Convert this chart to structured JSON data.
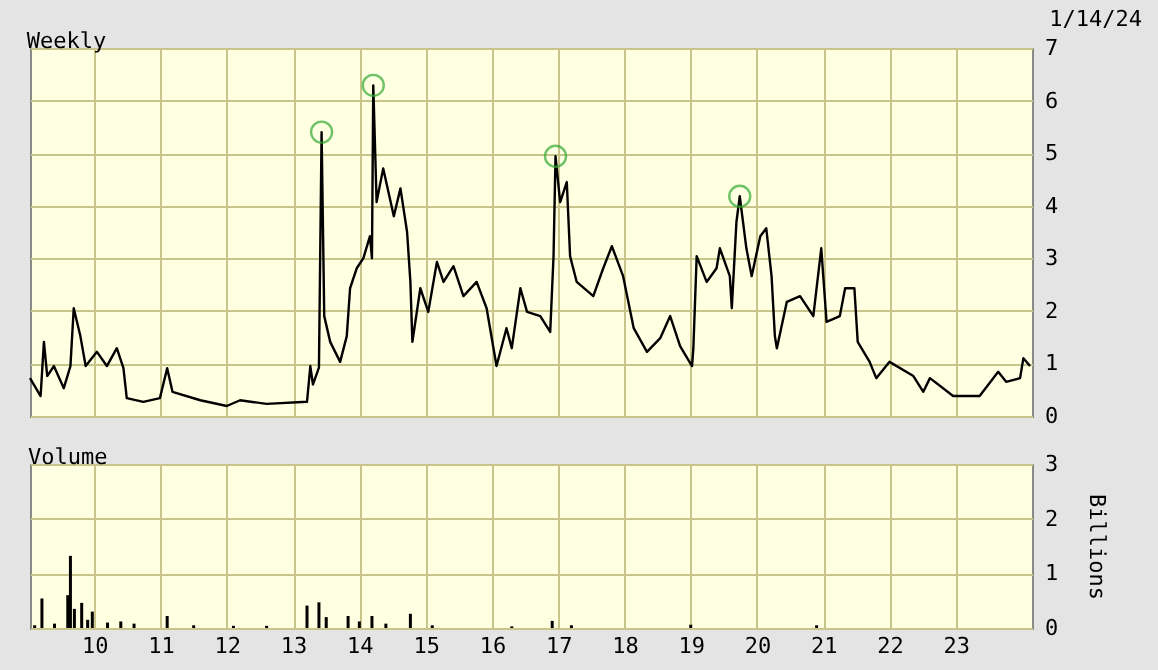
{
  "chart_data": [
    {
      "type": "line",
      "title": "Weekly",
      "annotations": [
        "1/14/24"
      ],
      "xlim": [
        2009.03,
        2024.15
      ],
      "xticks": [
        {
          "value": 2010,
          "label": null
        },
        {
          "value": 2011,
          "label": null
        },
        {
          "value": 2012,
          "label": null
        },
        {
          "value": 2013,
          "label": null
        },
        {
          "value": 2014,
          "label": null
        },
        {
          "value": 2015,
          "label": null
        },
        {
          "value": 2016,
          "label": null
        },
        {
          "value": 2017,
          "label": null
        },
        {
          "value": 2018,
          "label": null
        },
        {
          "value": 2019,
          "label": null
        },
        {
          "value": 2020,
          "label": null
        },
        {
          "value": 2021,
          "label": null
        },
        {
          "value": 2022,
          "label": null
        },
        {
          "value": 2023,
          "label": null
        }
      ],
      "ylim": [
        0,
        7
      ],
      "yticks": [
        0,
        1,
        2,
        3,
        4,
        5,
        6,
        7
      ],
      "grid": true,
      "tick_labels": "y",
      "series": [
        {
          "color": "#000000",
          "x": [
            2009.03,
            2009.19,
            2009.24,
            2009.29,
            2009.39,
            2009.54,
            2009.64,
            2009.69,
            2009.79,
            2009.87,
            2010.04,
            2010.19,
            2010.34,
            2010.44,
            2010.49,
            2010.74,
            2010.99,
            2011.1,
            2011.18,
            2011.6,
            2012.0,
            2012.2,
            2012.6,
            2013.21,
            2013.26,
            2013.3,
            2013.39,
            2013.43,
            2013.47,
            2013.56,
            2013.71,
            2013.81,
            2013.86,
            2013.96,
            2014.06,
            2014.16,
            2014.19,
            2014.21,
            2014.26,
            2014.36,
            2014.52,
            2014.62,
            2014.72,
            2014.77,
            2014.8,
            2014.92,
            2015.04,
            2015.17,
            2015.27,
            2015.42,
            2015.57,
            2015.77,
            2015.92,
            2016.07,
            2016.22,
            2016.3,
            2016.43,
            2016.53,
            2016.73,
            2016.88,
            2016.93,
            2016.96,
            2017.03,
            2017.13,
            2017.18,
            2017.28,
            2017.53,
            2017.68,
            2017.81,
            2017.98,
            2018.14,
            2018.34,
            2018.54,
            2018.69,
            2018.84,
            2019.02,
            2019.04,
            2019.09,
            2019.24,
            2019.39,
            2019.44,
            2019.59,
            2019.62,
            2019.69,
            2019.74,
            2019.84,
            2019.92,
            2020.05,
            2020.14,
            2020.22,
            2020.27,
            2020.3,
            2020.45,
            2020.65,
            2020.85,
            2020.97,
            2021.05,
            2021.25,
            2021.33,
            2021.47,
            2021.52,
            2021.7,
            2021.8,
            2022.0,
            2022.36,
            2022.51,
            2022.61,
            2022.96,
            2023.36,
            2023.64,
            2023.76,
            2023.97,
            2024.02,
            2024.12
          ],
          "values": [
            0.72,
            0.38,
            1.41,
            0.76,
            0.95,
            0.53,
            0.95,
            2.05,
            1.52,
            0.95,
            1.22,
            0.95,
            1.29,
            0.91,
            0.34,
            0.27,
            0.34,
            0.91,
            0.46,
            0.3,
            0.19,
            0.3,
            0.23,
            0.27,
            0.95,
            0.6,
            0.92,
            5.4,
            1.9,
            1.41,
            1.03,
            1.52,
            2.43,
            2.81,
            3.0,
            3.42,
            3.0,
            6.29,
            4.07,
            4.71,
            3.8,
            4.33,
            3.5,
            2.55,
            1.41,
            2.43,
            1.98,
            2.93,
            2.55,
            2.85,
            2.28,
            2.55,
            2.05,
            0.95,
            1.67,
            1.29,
            2.43,
            1.98,
            1.9,
            1.6,
            3.04,
            4.94,
            4.07,
            4.45,
            3.04,
            2.55,
            2.28,
            2.81,
            3.23,
            2.66,
            1.67,
            1.22,
            1.48,
            1.9,
            1.33,
            0.95,
            1.29,
            3.04,
            2.55,
            2.81,
            3.19,
            2.66,
            2.05,
            3.69,
            4.18,
            3.19,
            2.66,
            3.42,
            3.57,
            2.66,
            1.52,
            1.29,
            2.17,
            2.28,
            1.9,
            3.19,
            1.79,
            1.9,
            2.43,
            2.43,
            1.41,
            1.03,
            0.72,
            1.03,
            0.76,
            0.46,
            0.72,
            0.38,
            0.38,
            0.84,
            0.65,
            0.72,
            1.1,
            0.95
          ]
        },
        {
          "type": "scatter",
          "color": "#33aa33",
          "marker": "circle",
          "x": [
            2013.43,
            2014.21,
            2016.96,
            2019.74
          ],
          "values": [
            5.4,
            6.29,
            4.94,
            4.18
          ]
        }
      ]
    },
    {
      "type": "bar",
      "title": "Volume",
      "ylabel": "Billions",
      "xlim": [
        2009.03,
        2024.15
      ],
      "xticks": [
        {
          "value": 2010,
          "label": "10"
        },
        {
          "value": 2011,
          "label": "11"
        },
        {
          "value": 2012,
          "label": "12"
        },
        {
          "value": 2013,
          "label": "13"
        },
        {
          "value": 2014,
          "label": "14"
        },
        {
          "value": 2015,
          "label": "15"
        },
        {
          "value": 2016,
          "label": "16"
        },
        {
          "value": 2017,
          "label": "17"
        },
        {
          "value": 2018,
          "label": "18"
        },
        {
          "value": 2019,
          "label": "19"
        },
        {
          "value": 2020,
          "label": "20"
        },
        {
          "value": 2021,
          "label": "21"
        },
        {
          "value": 2022,
          "label": "22"
        },
        {
          "value": 2023,
          "label": "23"
        }
      ],
      "ylim": [
        0,
        3
      ],
      "yticks": [
        0,
        1,
        2,
        3
      ],
      "grid": true,
      "series": [
        {
          "color": "#000000",
          "x": [
            2009.1,
            2009.21,
            2009.4,
            2009.6,
            2009.64,
            2009.7,
            2009.81,
            2009.9,
            2009.97,
            2010.2,
            2010.4,
            2010.6,
            2011.1,
            2011.5,
            2012.1,
            2012.6,
            2013.21,
            2013.39,
            2013.5,
            2013.83,
            2014.0,
            2014.19,
            2014.4,
            2014.77,
            2015.1,
            2016.3,
            2016.91,
            2017.2,
            2019.0,
            2020.9
          ],
          "values": [
            0.05,
            0.54,
            0.08,
            0.6,
            1.32,
            0.35,
            0.46,
            0.15,
            0.3,
            0.1,
            0.12,
            0.08,
            0.22,
            0.05,
            0.04,
            0.04,
            0.41,
            0.47,
            0.2,
            0.22,
            0.12,
            0.22,
            0.08,
            0.26,
            0.05,
            0.03,
            0.13,
            0.05,
            0.06,
            0.05
          ]
        }
      ]
    }
  ]
}
